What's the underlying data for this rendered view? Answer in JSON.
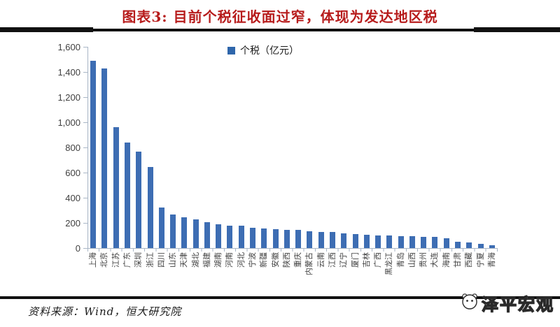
{
  "header": {
    "title": "图表3: 目前个税征收面过窄，体现为发达地区税"
  },
  "chart_data": {
    "type": "bar",
    "title": "图表3: 目前个税征收面过窄，体现为发达地区税",
    "legend": [
      "个税（亿元）"
    ],
    "legend_position": "top-center",
    "grid": false,
    "categories": [
      "上海",
      "北京",
      "江苏",
      "广东",
      "深圳",
      "浙江",
      "四川",
      "山东",
      "天津",
      "湖北",
      "福建",
      "湖南",
      "河南",
      "河北",
      "宁波",
      "新疆",
      "安徽",
      "陕西",
      "重庆",
      "内蒙古",
      "云南",
      "江西",
      "辽宁",
      "厦门",
      "吉林",
      "广西",
      "黑龙江",
      "青岛",
      "山西",
      "贵州",
      "大连",
      "海南",
      "甘肃",
      "西藏",
      "宁夏",
      "青海"
    ],
    "values": [
      1490,
      1430,
      960,
      840,
      765,
      643,
      324,
      268,
      246,
      230,
      208,
      187,
      180,
      176,
      159,
      155,
      150,
      147,
      144,
      132,
      130,
      127,
      116,
      112,
      106,
      102,
      98,
      95,
      93,
      91,
      89,
      80,
      51,
      45,
      32,
      24
    ],
    "ylabel": "",
    "xlabel": "",
    "ylim": [
      0,
      1600
    ],
    "ytick_step": 200,
    "ytick_labels": [
      "0",
      "200",
      "400",
      "600",
      "800",
      "1,000",
      "1,200",
      "1,400",
      "1,600"
    ],
    "bar_color": "#3d6db3",
    "axis_color": "#a9b6c6",
    "title_color": "#b71c1c"
  },
  "footer": {
    "source": "资料来源：Wind，恒大研究院",
    "watermark": "泽平宏观"
  }
}
